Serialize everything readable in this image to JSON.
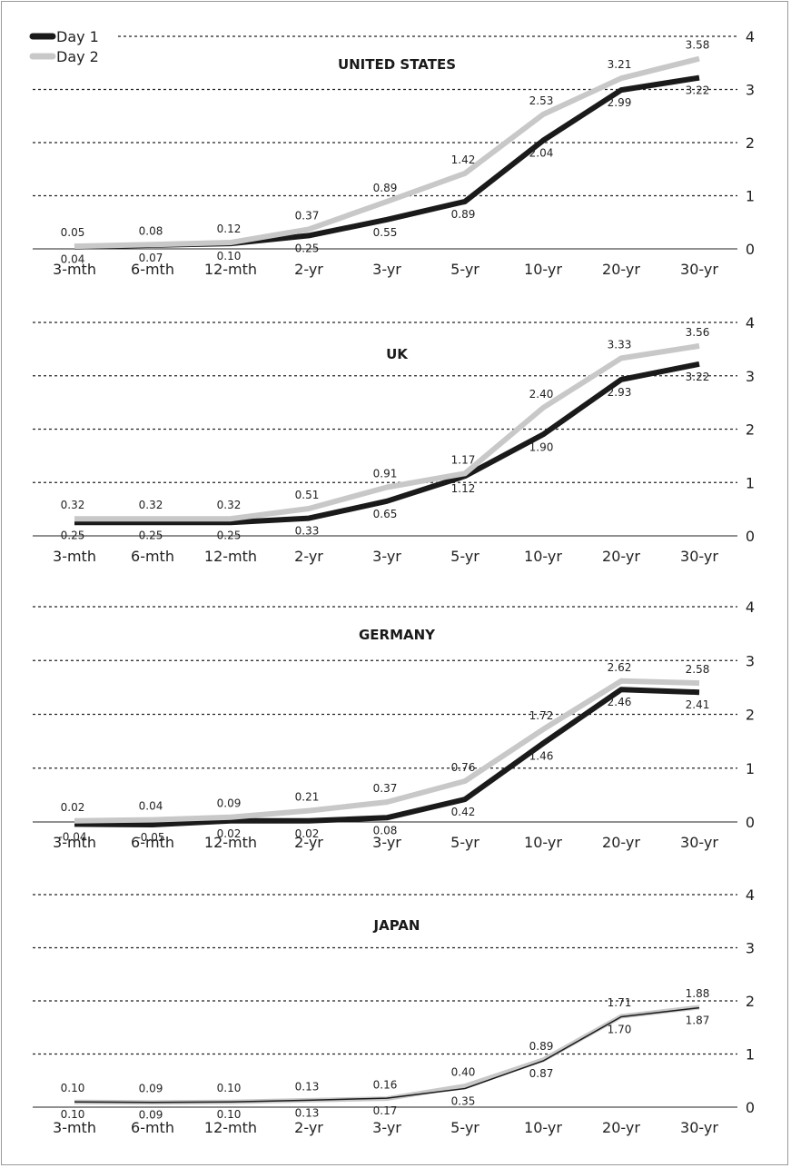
{
  "legend": {
    "day1": "Day 1",
    "day2": "Day 2"
  },
  "colors": {
    "day1": "#1a1a1a",
    "day2": "#c8c8c8",
    "grid": "#222222"
  },
  "chart_data": [
    {
      "type": "line",
      "title": "UNITED STATES",
      "categories": [
        "3-mth",
        "6-mth",
        "12-mth",
        "2-yr",
        "3-yr",
        "5-yr",
        "10-yr",
        "20-yr",
        "30-yr"
      ],
      "yticks": [
        "0",
        "1",
        "2",
        "3",
        "4"
      ],
      "ylim": [
        0,
        4
      ],
      "grid": true,
      "series": [
        {
          "name": "Day 1",
          "values": [
            0.04,
            0.07,
            0.1,
            0.25,
            0.55,
            0.89,
            2.04,
            2.99,
            3.22
          ],
          "labels": [
            "0.04",
            "0.07",
            "0.10",
            "0.25",
            "0.55",
            "0.89",
            "2.04",
            "2.99",
            "3.22"
          ]
        },
        {
          "name": "Day 2",
          "values": [
            0.05,
            0.08,
            0.12,
            0.37,
            0.89,
            1.42,
            2.53,
            3.21,
            3.58
          ],
          "labels": [
            "0.05",
            "0.08",
            "0.12",
            "0.37",
            "0.89",
            "1.42",
            "2.53",
            "3.21",
            "3.58"
          ]
        }
      ]
    },
    {
      "type": "line",
      "title": "UK",
      "categories": [
        "3-mth",
        "6-mth",
        "12-mth",
        "2-yr",
        "3-yr",
        "5-yr",
        "10-yr",
        "20-yr",
        "30-yr"
      ],
      "yticks": [
        "0",
        "1",
        "2",
        "3",
        "4"
      ],
      "ylim": [
        0,
        4
      ],
      "grid": true,
      "series": [
        {
          "name": "Day 1",
          "values": [
            0.25,
            0.25,
            0.25,
            0.33,
            0.65,
            1.12,
            1.9,
            2.93,
            3.22
          ],
          "labels": [
            "0.25",
            "0.25",
            "0.25",
            "0.33",
            "0.65",
            "1.12",
            "1.90",
            "2.93",
            "3.22"
          ]
        },
        {
          "name": "Day 2",
          "values": [
            0.32,
            0.32,
            0.32,
            0.51,
            0.91,
            1.17,
            2.4,
            3.33,
            3.56
          ],
          "labels": [
            "0.32",
            "0.32",
            "0.32",
            "0.51",
            "0.91",
            "1.17",
            "2.40",
            "3.33",
            "3.56"
          ]
        }
      ]
    },
    {
      "type": "line",
      "title": "GERMANY",
      "categories": [
        "3-mth",
        "6-mth",
        "12-mth",
        "2-yr",
        "3-yr",
        "5-yr",
        "10-yr",
        "20-yr",
        "30-yr"
      ],
      "yticks": [
        "0",
        "1",
        "2",
        "3",
        "4"
      ],
      "ylim": [
        0,
        4
      ],
      "grid": true,
      "series": [
        {
          "name": "Day 1",
          "values": [
            -0.04,
            -0.05,
            0.02,
            0.02,
            0.08,
            0.42,
            1.46,
            2.46,
            2.41
          ],
          "labels": [
            "-0.04",
            "-0.05",
            "0.02",
            "0.02",
            "0.08",
            "0.42",
            "1.46",
            "2.46",
            "2.41"
          ]
        },
        {
          "name": "Day 2",
          "values": [
            0.02,
            0.04,
            0.09,
            0.21,
            0.37,
            0.76,
            1.72,
            2.62,
            2.58
          ],
          "labels": [
            "0.02",
            "0.04",
            "0.09",
            "0.21",
            "0.37",
            "0.76",
            "1.72",
            "2.62",
            "2.58"
          ]
        }
      ]
    },
    {
      "type": "line",
      "title": "JAPAN",
      "categories": [
        "3-mth",
        "6-mth",
        "12-mth",
        "2-yr",
        "3-yr",
        "5-yr",
        "10-yr",
        "20-yr",
        "30-yr"
      ],
      "yticks": [
        "0",
        "1",
        "2",
        "3",
        "4"
      ],
      "ylim": [
        0,
        4
      ],
      "grid": true,
      "series": [
        {
          "name": "Day 1",
          "values": [
            0.1,
            0.09,
            0.1,
            0.13,
            0.17,
            0.35,
            0.87,
            1.7,
            1.87
          ],
          "labels": [
            "0.10",
            "0.09",
            "0.10",
            "0.13",
            "0.17",
            "0.35",
            "0.87",
            "1.70",
            "1.87"
          ]
        },
        {
          "name": "Day 2",
          "values": [
            0.1,
            0.09,
            0.1,
            0.13,
            0.16,
            0.4,
            0.89,
            1.71,
            1.88
          ],
          "labels": [
            "0.10",
            "0.09",
            "0.10",
            "0.13",
            "0.16",
            "0.40",
            "0.89",
            "1.71",
            "1.88"
          ]
        }
      ]
    }
  ]
}
